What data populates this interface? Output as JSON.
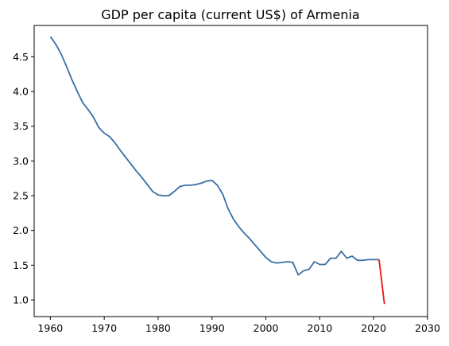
{
  "chart_data": {
    "type": "line",
    "title": "GDP per capita (current US$) of Armenia",
    "xlabel": "",
    "ylabel": "",
    "xlim": [
      1957,
      2030
    ],
    "ylim": [
      0.76,
      4.95
    ],
    "x_ticks": [
      1960,
      1970,
      1980,
      1990,
      2000,
      2010,
      2020,
      2030
    ],
    "y_ticks": [
      1.0,
      1.5,
      2.0,
      2.5,
      3.0,
      3.5,
      4.0,
      4.5
    ],
    "x_tick_labels": [
      "1960",
      "1970",
      "1980",
      "1990",
      "2000",
      "2010",
      "2020",
      "2030"
    ],
    "y_tick_labels": [
      "1.0",
      "1.5",
      "2.0",
      "2.5",
      "3.0",
      "3.5",
      "4.0",
      "4.5"
    ],
    "grid": false,
    "legend": "none",
    "series": [
      {
        "color": "#3a6ea5",
        "x": [
          1960,
          1961,
          1962,
          1963,
          1964,
          1965,
          1966,
          1967,
          1968,
          1969,
          1970,
          1971,
          1972,
          1973,
          1974,
          1975,
          1976,
          1977,
          1978,
          1979,
          1980,
          1981,
          1982,
          1983,
          1984,
          1985,
          1986,
          1987,
          1988,
          1989,
          1990,
          1991,
          1992,
          1993,
          1994,
          1995,
          1996,
          1997,
          1998,
          1999,
          2000,
          2001,
          2002,
          2003,
          2004,
          2005,
          2006,
          2007,
          2008,
          2009,
          2010,
          2011,
          2012,
          2013,
          2014,
          2015,
          2016,
          2017,
          2018,
          2019,
          2020,
          2021
        ],
        "y": [
          4.79,
          4.68,
          4.54,
          4.36,
          4.17,
          4.0,
          3.84,
          3.74,
          3.63,
          3.48,
          3.4,
          3.35,
          3.26,
          3.15,
          3.05,
          2.95,
          2.85,
          2.76,
          2.66,
          2.56,
          2.51,
          2.5,
          2.5,
          2.56,
          2.63,
          2.65,
          2.65,
          2.66,
          2.68,
          2.71,
          2.72,
          2.65,
          2.52,
          2.31,
          2.16,
          2.05,
          1.96,
          1.88,
          1.79,
          1.7,
          1.61,
          1.55,
          1.53,
          1.54,
          1.55,
          1.54,
          1.36,
          1.42,
          1.44,
          1.55,
          1.51,
          1.51,
          1.6,
          1.6,
          1.7,
          1.6,
          1.63,
          1.57,
          1.57,
          1.58,
          1.58,
          1.58
        ]
      },
      {
        "color": "#ee1111",
        "x": [
          2021,
          2022
        ],
        "y": [
          1.58,
          0.94
        ]
      }
    ]
  }
}
